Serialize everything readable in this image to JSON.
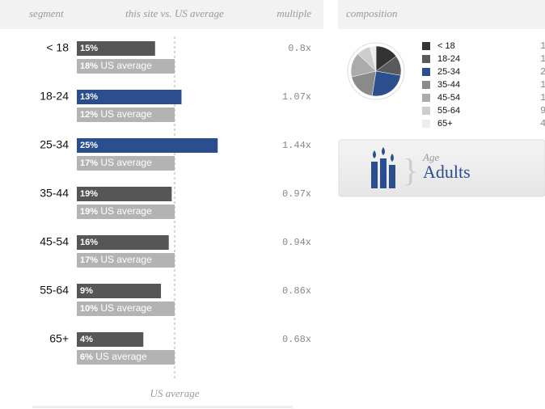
{
  "left_panel": {
    "headers": [
      "segment",
      "this site vs. US average",
      "multiple"
    ],
    "us_bar_text": "US average",
    "footer": "US average",
    "rows": [
      {
        "segment": "< 18",
        "site": 15,
        "site_label": "15%",
        "us": 18,
        "us_label": "18%",
        "multiple": {
          "value": 0.8,
          "label": "0.8x"
        },
        "color": "#565656"
      },
      {
        "segment": "18-24",
        "site": 13,
        "site_label": "13%",
        "us": 12,
        "us_label": "12%",
        "multiple": {
          "value": 1.07,
          "label": "1.07x"
        },
        "color": "#2b4f8e"
      },
      {
        "segment": "25-34",
        "site": 25,
        "site_label": "25%",
        "us": 17,
        "us_label": "17%",
        "multiple": {
          "value": 1.44,
          "label": "1.44x"
        },
        "color": "#2b4f8e"
      },
      {
        "segment": "35-44",
        "site": 19,
        "site_label": "19%",
        "us": 19,
        "us_label": "19%",
        "multiple": {
          "value": 0.97,
          "label": "0.97x"
        },
        "color": "#565656"
      },
      {
        "segment": "45-54",
        "site": 16,
        "site_label": "16%",
        "us": 17,
        "us_label": "17%",
        "multiple": {
          "value": 0.94,
          "label": "0.94x"
        },
        "color": "#565656"
      },
      {
        "segment": "55-64",
        "site": 9,
        "site_label": "9%",
        "us": 10,
        "us_label": "10%",
        "multiple": {
          "value": 0.86,
          "label": "0.86x"
        },
        "color": "#565656"
      },
      {
        "segment": "65+",
        "site": 4,
        "site_label": "4%",
        "us": 6,
        "us_label": "6%",
        "multiple": {
          "value": 0.68,
          "label": "0.68x"
        },
        "color": "#565656"
      }
    ]
  },
  "right_panel": {
    "header": "composition",
    "pie_colors": [
      "#333333",
      "#5a5a5a",
      "#2b4f8e",
      "#8a8a8a",
      "#ababab",
      "#cdcdcd",
      "#ececec"
    ],
    "card": {
      "label": "Age",
      "value": "Adults"
    }
  }
}
